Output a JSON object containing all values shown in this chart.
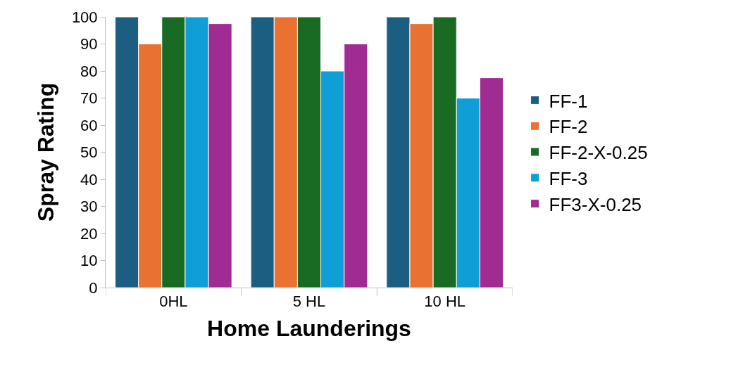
{
  "chart_data": {
    "type": "bar",
    "xlabel": "Home Launderings",
    "ylabel": "Spray Rating",
    "categories": [
      "0HL",
      "5 HL",
      "10 HL"
    ],
    "series": [
      {
        "name": "FF-1",
        "color": "#1b5e82",
        "values": [
          100,
          100,
          100
        ]
      },
      {
        "name": "FF-2",
        "color": "#e97132",
        "values": [
          90,
          100,
          97.5
        ]
      },
      {
        "name": "FF-2-X-0.25",
        "color": "#196b24",
        "values": [
          100,
          100,
          100
        ]
      },
      {
        "name": "FF-3",
        "color": "#0f9ed5",
        "values": [
          100,
          80,
          70
        ]
      },
      {
        "name": "FF3-X-0.25",
        "color": "#a02b93",
        "values": [
          97.5,
          90,
          77.5
        ]
      }
    ],
    "ylim": [
      0,
      100
    ],
    "yticks": [
      0,
      10,
      20,
      30,
      40,
      50,
      60,
      70,
      80,
      90,
      100
    ],
    "legend": "right"
  }
}
